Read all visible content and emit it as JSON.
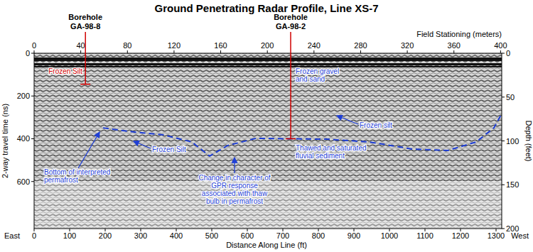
{
  "chart_data": {
    "type": "line",
    "title": "Ground Penetrating Radar Profile, Line XS-7",
    "x_label": "Distance Along Line (ft)",
    "x2_label": "Field Stationing (meters)",
    "y_label": "2-way travel time (ns)",
    "y2_label": "Depth (feet)",
    "x_left_label": "East",
    "x_right_label": "West",
    "xlim": [
      0,
      1316
    ],
    "xticks": [
      0,
      100,
      200,
      300,
      400,
      500,
      600,
      700,
      800,
      900,
      1000,
      1100,
      1200,
      1300
    ],
    "x2lim": [
      0,
      401
    ],
    "x2ticks": [
      0,
      40,
      80,
      120,
      160,
      200,
      240,
      280,
      320,
      360,
      400
    ],
    "ylim": [
      0,
      820
    ],
    "yticks": [
      0,
      200,
      400,
      600
    ],
    "y2lim": [
      0,
      200
    ],
    "y2ticks": [
      0,
      50,
      100,
      150,
      200
    ],
    "grid": false,
    "series": [
      {
        "color": "#1f3fd6",
        "line_style": "dashed",
        "x": [
          194,
          264,
          364,
          444,
          494,
          544,
          624,
          720,
          824,
          944,
          1064,
          1164,
          1244,
          1294,
          1314
        ],
        "values": [
          349,
          365,
          382,
          415,
          481,
          432,
          398,
          400,
          402,
          415,
          448,
          455,
          415,
          349,
          289
        ]
      }
    ],
    "boreholes": {
      "label": "Borehole",
      "names": [
        "GA-98-8",
        "GA-98-2"
      ],
      "stations": [
        44,
        220
      ],
      "bottoms": [
        145,
        400
      ],
      "color": "#d00000"
    },
    "annotations": [
      {
        "lines": [
          "Frozen Silt"
        ],
        "color": "#d00000"
      },
      {
        "lines": [
          "Frozen Silt"
        ],
        "color": "#1f3fd6"
      },
      {
        "lines": [
          "Bottom of interpreted",
          "permafrost"
        ],
        "color": "#1f3fd6"
      },
      {
        "lines": [
          "Frozen gravel",
          "and sand"
        ],
        "color": "#1f3fd6"
      },
      {
        "lines": [
          "Frozen silt"
        ],
        "color": "#1f3fd6"
      },
      {
        "lines": [
          "Thawed and saturated",
          "fluvial sediment"
        ],
        "color": "#1f3fd6"
      },
      {
        "lines": [
          "Change in character of",
          "GPR response",
          "associated with thaw",
          "bulb in permafrost"
        ],
        "color": "#1f3fd6"
      }
    ]
  }
}
